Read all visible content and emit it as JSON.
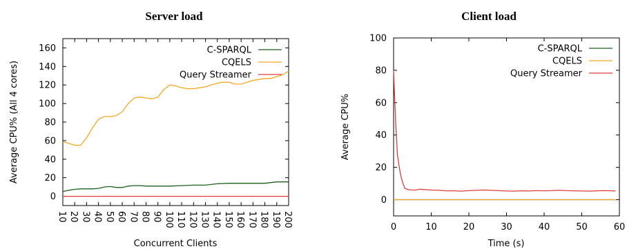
{
  "chart_data": [
    {
      "type": "line",
      "title": "Server load",
      "xlabel": "Concurrent Clients",
      "ylabel": "Average CPU% (All 4 cores)",
      "xlim": [
        10,
        200
      ],
      "ylim": [
        -10,
        170
      ],
      "xticks": [
        10,
        20,
        30,
        40,
        50,
        60,
        70,
        80,
        90,
        100,
        110,
        120,
        130,
        140,
        150,
        160,
        170,
        180,
        190,
        200
      ],
      "yticks": [
        0,
        20,
        40,
        60,
        80,
        100,
        120,
        140,
        160
      ],
      "xtick_rotation": 90,
      "legend": "top-right",
      "grid": false,
      "series": [
        {
          "name": "C-SPARQL",
          "color": "#1f5e1f",
          "x": [
            10,
            15,
            20,
            25,
            30,
            35,
            40,
            45,
            50,
            55,
            60,
            65,
            70,
            75,
            80,
            90,
            100,
            110,
            120,
            130,
            140,
            150,
            160,
            170,
            180,
            190,
            200
          ],
          "y": [
            5,
            6.5,
            7.5,
            8,
            8,
            8,
            8.5,
            10,
            10.5,
            9.5,
            9.5,
            11,
            11.5,
            11.5,
            11,
            11,
            11,
            11.5,
            12,
            12,
            13.5,
            14,
            14,
            14,
            14,
            15.5,
            15.5
          ]
        },
        {
          "name": "CQELS",
          "color": "#f5a623",
          "x": [
            10,
            15,
            20,
            25,
            30,
            35,
            40,
            45,
            50,
            55,
            60,
            65,
            70,
            75,
            80,
            85,
            90,
            95,
            100,
            105,
            110,
            115,
            120,
            125,
            130,
            135,
            140,
            145,
            150,
            155,
            160,
            165,
            170,
            175,
            180,
            185,
            190,
            195,
            200
          ],
          "y": [
            59,
            57,
            55,
            55,
            63,
            74,
            83,
            86,
            86,
            87,
            91,
            100,
            106,
            107,
            106,
            105,
            107,
            115,
            120,
            119,
            117,
            116,
            116,
            117,
            118,
            120,
            122,
            123,
            123,
            121,
            121,
            123,
            125,
            126,
            127,
            127,
            129,
            131,
            135
          ]
        },
        {
          "name": "Query Streamer",
          "color": "#e03a3a",
          "x": [
            10,
            200
          ],
          "y": [
            0,
            0
          ]
        }
      ]
    },
    {
      "type": "line",
      "title": "Client load",
      "xlabel": "Time (s)",
      "ylabel": "Average CPU%",
      "xlim": [
        0,
        60
      ],
      "ylim": [
        -10,
        100
      ],
      "xticks": [
        0,
        10,
        20,
        30,
        40,
        50,
        60
      ],
      "yticks": [
        0,
        20,
        40,
        60,
        80,
        100
      ],
      "xtick_rotation": 0,
      "legend": "top-right",
      "grid": false,
      "series": [
        {
          "name": "C-SPARQL",
          "color": "#1f5e1f",
          "x": [
            0,
            59
          ],
          "y": [
            0,
            0
          ]
        },
        {
          "name": "CQELS",
          "color": "#f5a623",
          "x": [
            0,
            59
          ],
          "y": [
            0,
            0
          ]
        },
        {
          "name": "Query Streamer",
          "color": "#e03a3a",
          "x": [
            0,
            0.3,
            0.6,
            1,
            1.5,
            2,
            2.5,
            3,
            4,
            5,
            6,
            7,
            8,
            10,
            12,
            14,
            16,
            18,
            20,
            22,
            24,
            26,
            28,
            30,
            32,
            34,
            36,
            38,
            40,
            42,
            44,
            46,
            48,
            50,
            52,
            54,
            56,
            58,
            59
          ],
          "y": [
            80,
            62,
            45,
            28,
            20,
            14,
            10,
            7,
            6.2,
            6,
            6,
            6.5,
            6.3,
            6,
            5.8,
            5.5,
            5.5,
            5.3,
            5.6,
            5.8,
            6,
            5.8,
            5.6,
            5.4,
            5.3,
            5.5,
            5.4,
            5.6,
            5.5,
            5.6,
            5.8,
            5.6,
            5.5,
            5.4,
            5.3,
            5.5,
            5.6,
            5.5,
            5.4
          ]
        }
      ]
    }
  ]
}
